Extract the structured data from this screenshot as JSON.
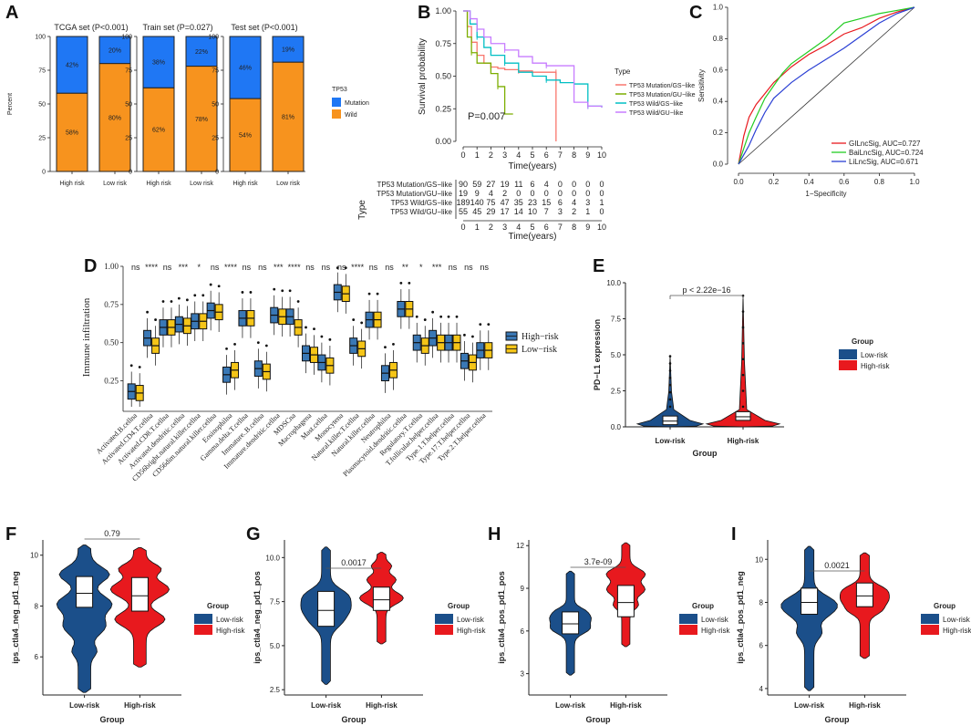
{
  "panel_letters": [
    "A",
    "B",
    "C",
    "D",
    "E",
    "F",
    "G",
    "H",
    "I"
  ],
  "colors": {
    "mutation": "#1f77f4",
    "wild": "#f7931e",
    "gs_mut": "#f8766d",
    "gu_mut": "#7cae00",
    "gs_wild": "#00bfc4",
    "gu_wild": "#c77cff",
    "high": "#3a78b5",
    "low": "#f5c518",
    "vio_low": "#1b4f8a",
    "vio_high": "#e8191e",
    "roc_gil": "#e8191e",
    "roc_bai": "#22cc22",
    "roc_li": "#2a3fd4"
  },
  "chart_data": [
    {
      "panel": "A",
      "type": "bar",
      "stacked": true,
      "ylabel": "Percent",
      "yticks": [
        "0",
        "25",
        "50",
        "75",
        "100"
      ],
      "legend_title": "TP53",
      "legend": [
        "Mutation",
        "Wild"
      ],
      "subplots": [
        {
          "title": "TCGA set (P<0.001)",
          "categories": [
            "High risk",
            "Low risk"
          ],
          "mutation": [
            42,
            20
          ],
          "wild": [
            58,
            80
          ],
          "mutation_labels": [
            "42%",
            "20%"
          ],
          "wild_labels": [
            "58%",
            "80%"
          ]
        },
        {
          "title": "Train set (P=0.027)",
          "categories": [
            "High risk",
            "Low risk"
          ],
          "mutation": [
            38,
            22
          ],
          "wild": [
            62,
            78
          ],
          "mutation_labels": [
            "38%",
            "22%"
          ],
          "wild_labels": [
            "62%",
            "78%"
          ]
        },
        {
          "title": "Test set (P<0.001)",
          "categories": [
            "High risk",
            "Low risk"
          ],
          "mutation": [
            46,
            19
          ],
          "wild": [
            54,
            81
          ],
          "mutation_labels": [
            "46%",
            "19%"
          ],
          "wild_labels": [
            "54%",
            "81%"
          ]
        }
      ]
    },
    {
      "panel": "B",
      "type": "line",
      "subtype": "kaplan-meier",
      "ylabel": "Survival probability",
      "xlabel": "Time(years)",
      "yticks": [
        "0.00",
        "0.25",
        "0.50",
        "0.75",
        "1.00"
      ],
      "xticks": [
        "0",
        "1",
        "2",
        "3",
        "4",
        "5",
        "6",
        "7",
        "8",
        "9",
        "10"
      ],
      "xlim": [
        0,
        10
      ],
      "ylim": [
        0,
        1
      ],
      "pvalue": "P=0.007",
      "legend_title": "Type",
      "series": [
        {
          "name": "TP53 Mutation/GS−like",
          "x": [
            0,
            0.3,
            0.6,
            1,
            1.5,
            2,
            2.5,
            3,
            4,
            5,
            6,
            6.7,
            6.7
          ],
          "y": [
            1,
            0.88,
            0.76,
            0.66,
            0.6,
            0.57,
            0.56,
            0.55,
            0.54,
            0.53,
            0.53,
            0.53,
            0
          ]
        },
        {
          "name": "TP53 Mutation/GU−like",
          "x": [
            0,
            0.3,
            0.6,
            1,
            2,
            2.5,
            3,
            3.6
          ],
          "y": [
            1,
            0.8,
            0.68,
            0.6,
            0.52,
            0.42,
            0.21,
            0.21
          ]
        },
        {
          "name": "TP53 Wild/GS−like",
          "x": [
            0,
            0.5,
            1,
            1.5,
            2,
            3,
            4,
            5,
            6,
            7,
            8,
            9,
            10
          ],
          "y": [
            1,
            0.9,
            0.8,
            0.72,
            0.66,
            0.6,
            0.53,
            0.5,
            0.47,
            0.45,
            0.44,
            0.27,
            0.26
          ]
        },
        {
          "name": "TP53 Wild/GU−like",
          "x": [
            0,
            0.5,
            1,
            1.5,
            2,
            3,
            4,
            5,
            6,
            7,
            8,
            9,
            10
          ],
          "y": [
            1,
            0.94,
            0.86,
            0.8,
            0.75,
            0.7,
            0.65,
            0.6,
            0.58,
            0.58,
            0.3,
            0.27,
            0.26
          ]
        }
      ],
      "risk_table": {
        "title": "Type",
        "rows": [
          "TP53 Mutation/GS−like",
          "TP53 Mutation/GU−like",
          "TP53 Wild/GS−like",
          "TP53 Wild/GU−like"
        ],
        "values": [
          [
            "90",
            "59",
            "27",
            "19",
            "11",
            "6",
            "4",
            "0",
            "0",
            "0",
            "0"
          ],
          [
            "19",
            "9",
            "4",
            "2",
            "0",
            "0",
            "0",
            "0",
            "0",
            "0",
            "0"
          ],
          [
            "189",
            "140",
            "75",
            "47",
            "35",
            "23",
            "15",
            "6",
            "4",
            "3",
            "1"
          ],
          [
            "55",
            "45",
            "29",
            "17",
            "14",
            "10",
            "7",
            "3",
            "2",
            "1",
            "0"
          ]
        ]
      }
    },
    {
      "panel": "C",
      "type": "line",
      "subtype": "roc",
      "xlabel": "1−Specificity",
      "ylabel": "Sensitivity",
      "xticks": [
        "0.0",
        "0.2",
        "0.4",
        "0.6",
        "0.8",
        "1.0"
      ],
      "yticks": [
        "0.0",
        "0.2",
        "0.4",
        "0.6",
        "0.8",
        "1.0"
      ],
      "series": [
        {
          "name": "GILncSig, AUC=0.727",
          "x": [
            0,
            0.03,
            0.06,
            0.1,
            0.15,
            0.2,
            0.25,
            0.3,
            0.4,
            0.5,
            0.6,
            0.7,
            0.8,
            0.9,
            1
          ],
          "y": [
            0,
            0.18,
            0.3,
            0.38,
            0.45,
            0.52,
            0.57,
            0.62,
            0.7,
            0.76,
            0.83,
            0.87,
            0.93,
            0.97,
            1
          ]
        },
        {
          "name": "BaiLncSig, AUC=0.724",
          "x": [
            0,
            0.03,
            0.06,
            0.1,
            0.15,
            0.2,
            0.25,
            0.3,
            0.4,
            0.5,
            0.6,
            0.7,
            0.8,
            0.9,
            1
          ],
          "y": [
            0,
            0.1,
            0.2,
            0.3,
            0.42,
            0.5,
            0.58,
            0.64,
            0.72,
            0.8,
            0.9,
            0.93,
            0.96,
            0.98,
            1
          ]
        },
        {
          "name": "LiLncSig, AUC=0.671",
          "x": [
            0,
            0.03,
            0.06,
            0.1,
            0.15,
            0.2,
            0.25,
            0.3,
            0.4,
            0.5,
            0.6,
            0.7,
            0.8,
            0.9,
            1
          ],
          "y": [
            0,
            0.06,
            0.12,
            0.22,
            0.33,
            0.42,
            0.47,
            0.52,
            0.6,
            0.67,
            0.74,
            0.82,
            0.9,
            0.96,
            1
          ]
        }
      ]
    },
    {
      "panel": "D",
      "type": "box",
      "ylabel": "Immune  infiltration",
      "yticks": [
        "0.25",
        "0.50",
        "0.75",
        "1.00"
      ],
      "ylim": [
        0.05,
        1.0
      ],
      "legend": [
        "High−risk",
        "Low−risk"
      ],
      "categories": [
        "Activated.B.cellna",
        "Activated.CD4.T.cellna",
        "Activated.CD8.T.cellna",
        "Activated.dendritic.cellna",
        "CD56bright.natural.killer.cellna",
        "CD56dim.natural.killer.cellna",
        "Eosinophilna",
        "Gamma.delta.T.cellna",
        "Immature..B.cellna",
        "Immature.dendritic.cellna",
        "MDSCna",
        "Macrophagena",
        "Mast.cellna",
        "Monocytena",
        "Natural.killer.T.cellna",
        "Natural.killer.cellna",
        "Neutrophilna",
        "Plasmacytoid.dendritic.cellna",
        "Regulatory.T.cellna",
        "T.follicular.helper.cellna",
        "Type.1.T.helper.cellna",
        "Type.17.T.helper.cellna",
        "Type.2.T.helper.cellna"
      ],
      "significance": [
        "ns",
        "****",
        "ns",
        "***",
        "*",
        "ns",
        "****",
        "ns",
        "ns",
        "***",
        "****",
        "ns",
        "ns",
        "ns",
        "****",
        "ns",
        "ns",
        "**",
        "*",
        "***",
        "ns",
        "ns",
        "ns"
      ],
      "high_median": [
        0.18,
        0.53,
        0.6,
        0.62,
        0.64,
        0.71,
        0.29,
        0.66,
        0.33,
        0.68,
        0.67,
        0.43,
        0.37,
        0.83,
        0.48,
        0.65,
        0.3,
        0.72,
        0.5,
        0.53,
        0.5,
        0.38,
        0.45
      ],
      "low_median": [
        0.17,
        0.48,
        0.6,
        0.61,
        0.64,
        0.7,
        0.32,
        0.66,
        0.31,
        0.67,
        0.6,
        0.42,
        0.35,
        0.82,
        0.46,
        0.65,
        0.32,
        0.72,
        0.48,
        0.5,
        0.5,
        0.37,
        0.45
      ]
    },
    {
      "panel": "E",
      "type": "violin",
      "ylabel": "PD−L1 expression",
      "xlabel": "Group",
      "categories": [
        "Low-risk",
        "High-risk"
      ],
      "yticks": [
        "0.0",
        "2.5",
        "5.0",
        "7.5",
        "10.0"
      ],
      "ylim": [
        0,
        10
      ],
      "pvalue": "p < 2.22e−16",
      "legend_title": "Group",
      "legend": [
        "Low-risk",
        "High-risk"
      ],
      "medians": [
        0.4,
        0.7
      ],
      "maxima": [
        4.9,
        9.1
      ]
    },
    {
      "panel": "F",
      "type": "violin",
      "ylabel": "ips_ctla4_neg_pd1_neg",
      "xlabel": "Group",
      "categories": [
        "Low-risk",
        "High-risk"
      ],
      "yticks": [
        "6",
        "8",
        "10"
      ],
      "ylim": [
        4.5,
        10.6
      ],
      "pvalue": "0.79",
      "legend_title": "Group",
      "legend": [
        "Low-risk",
        "High-risk"
      ],
      "medians": [
        8.5,
        8.4
      ]
    },
    {
      "panel": "G",
      "type": "violin",
      "ylabel": "ips_ctla4_neg_pd1_pos",
      "xlabel": "Group",
      "categories": [
        "Low-risk",
        "High-risk"
      ],
      "yticks": [
        "2.5",
        "5.0",
        "7.5",
        "10.0"
      ],
      "ylim": [
        2.2,
        11.0
      ],
      "pvalue": "0.0017",
      "legend_title": "Group",
      "legend": [
        "Low-risk",
        "High-risk"
      ],
      "medians": [
        7.0,
        7.6
      ]
    },
    {
      "panel": "H",
      "type": "violin",
      "ylabel": "ips_ctla4_pos_pd1_pos",
      "xlabel": "Group",
      "categories": [
        "Low-risk",
        "High-risk"
      ],
      "yticks": [
        "3",
        "6",
        "9",
        "12"
      ],
      "ylim": [
        1.5,
        12.4
      ],
      "pvalue": "3.7e-09",
      "legend_title": "Group",
      "legend": [
        "Low-risk",
        "High-risk"
      ],
      "medians": [
        6.5,
        8.0
      ]
    },
    {
      "panel": "I",
      "type": "violin",
      "ylabel": "ips_ctla4_pos_pd1_neg",
      "xlabel": "Group",
      "categories": [
        "Low-risk",
        "High-risk"
      ],
      "yticks": [
        "4",
        "6",
        "8",
        "10"
      ],
      "ylim": [
        3.7,
        10.9
      ],
      "pvalue": "0.0021",
      "legend_title": "Group",
      "legend": [
        "Low-risk",
        "High-risk"
      ],
      "medians": [
        8.0,
        8.3
      ]
    }
  ]
}
